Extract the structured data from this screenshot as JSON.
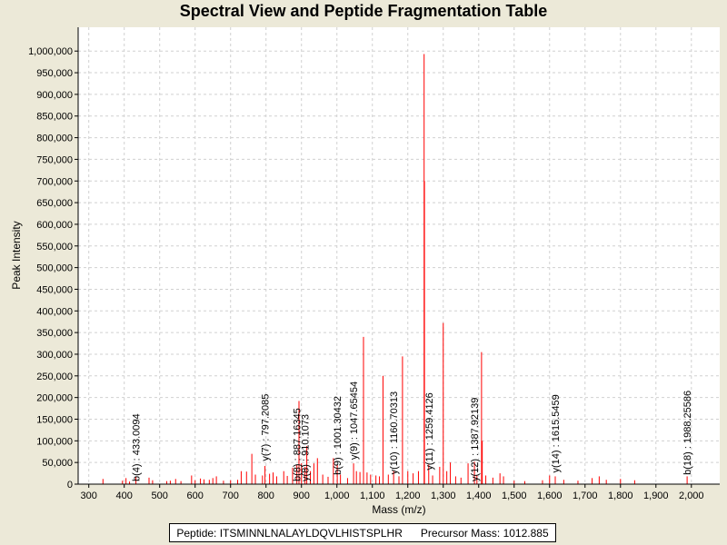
{
  "chart_data": {
    "type": "bar",
    "title": "Spectral View and Peptide Fragmentation Table",
    "xlabel": "Mass (m/z)",
    "ylabel": "Peak Intensity",
    "xlim": [
      270,
      2080
    ],
    "ylim": [
      0,
      1055000
    ],
    "x_ticks": [
      "300",
      "400",
      "500",
      "600",
      "700",
      "800",
      "900",
      "1,000",
      "1,100",
      "1,200",
      "1,300",
      "1,400",
      "1,500",
      "1,600",
      "1,700",
      "1,800",
      "1,900",
      "2,000"
    ],
    "y_ticks": [
      "0",
      "50,000",
      "100,000",
      "150,000",
      "200,000",
      "250,000",
      "300,000",
      "350,000",
      "400,000",
      "450,000",
      "500,000",
      "550,000",
      "600,000",
      "650,000",
      "700,000",
      "750,000",
      "800,000",
      "850,000",
      "900,000",
      "950,000",
      "1,000,000"
    ],
    "grid": true,
    "peak_color": "#ff0000",
    "peaks": [
      {
        "mz": 340,
        "i": 12000
      },
      {
        "mz": 395,
        "i": 8000
      },
      {
        "mz": 405,
        "i": 14000
      },
      {
        "mz": 415,
        "i": 6000
      },
      {
        "mz": 433,
        "i": 16000
      },
      {
        "mz": 470,
        "i": 15000
      },
      {
        "mz": 480,
        "i": 9000
      },
      {
        "mz": 520,
        "i": 7000
      },
      {
        "mz": 530,
        "i": 8000
      },
      {
        "mz": 545,
        "i": 12000
      },
      {
        "mz": 560,
        "i": 7000
      },
      {
        "mz": 590,
        "i": 20000
      },
      {
        "mz": 600,
        "i": 9000
      },
      {
        "mz": 615,
        "i": 13000
      },
      {
        "mz": 625,
        "i": 11000
      },
      {
        "mz": 640,
        "i": 10000
      },
      {
        "mz": 650,
        "i": 14000
      },
      {
        "mz": 660,
        "i": 18000
      },
      {
        "mz": 680,
        "i": 8000
      },
      {
        "mz": 700,
        "i": 9000
      },
      {
        "mz": 720,
        "i": 10000
      },
      {
        "mz": 730,
        "i": 30000
      },
      {
        "mz": 745,
        "i": 29000
      },
      {
        "mz": 760,
        "i": 70000
      },
      {
        "mz": 770,
        "i": 22000
      },
      {
        "mz": 790,
        "i": 20000
      },
      {
        "mz": 797,
        "i": 42000
      },
      {
        "mz": 810,
        "i": 24000
      },
      {
        "mz": 820,
        "i": 27000
      },
      {
        "mz": 830,
        "i": 18000
      },
      {
        "mz": 850,
        "i": 30000
      },
      {
        "mz": 860,
        "i": 19000
      },
      {
        "mz": 875,
        "i": 38000
      },
      {
        "mz": 887,
        "i": 45000
      },
      {
        "mz": 893,
        "i": 192000
      },
      {
        "mz": 900,
        "i": 48000
      },
      {
        "mz": 910,
        "i": 40000
      },
      {
        "mz": 915,
        "i": 88000
      },
      {
        "mz": 925,
        "i": 30000
      },
      {
        "mz": 935,
        "i": 48000
      },
      {
        "mz": 945,
        "i": 60000
      },
      {
        "mz": 960,
        "i": 22000
      },
      {
        "mz": 975,
        "i": 17000
      },
      {
        "mz": 990,
        "i": 60000
      },
      {
        "mz": 1001,
        "i": 45000
      },
      {
        "mz": 1010,
        "i": 22000
      },
      {
        "mz": 1030,
        "i": 14000
      },
      {
        "mz": 1047,
        "i": 48000
      },
      {
        "mz": 1055,
        "i": 30000
      },
      {
        "mz": 1065,
        "i": 28000
      },
      {
        "mz": 1075,
        "i": 340000
      },
      {
        "mz": 1085,
        "i": 27000
      },
      {
        "mz": 1095,
        "i": 22000
      },
      {
        "mz": 1110,
        "i": 20000
      },
      {
        "mz": 1120,
        "i": 18000
      },
      {
        "mz": 1130,
        "i": 250000
      },
      {
        "mz": 1145,
        "i": 22000
      },
      {
        "mz": 1160,
        "i": 30000
      },
      {
        "mz": 1175,
        "i": 18000
      },
      {
        "mz": 1185,
        "i": 295000
      },
      {
        "mz": 1200,
        "i": 30000
      },
      {
        "mz": 1215,
        "i": 25000
      },
      {
        "mz": 1230,
        "i": 30000
      },
      {
        "mz": 1246,
        "i": 993000
      },
      {
        "mz": 1247,
        "i": 700000
      },
      {
        "mz": 1259,
        "i": 45000
      },
      {
        "mz": 1270,
        "i": 20000
      },
      {
        "mz": 1290,
        "i": 40000
      },
      {
        "mz": 1300,
        "i": 372000
      },
      {
        "mz": 1310,
        "i": 30000
      },
      {
        "mz": 1320,
        "i": 50000
      },
      {
        "mz": 1335,
        "i": 18000
      },
      {
        "mz": 1350,
        "i": 15000
      },
      {
        "mz": 1370,
        "i": 48000
      },
      {
        "mz": 1388,
        "i": 52000
      },
      {
        "mz": 1395,
        "i": 20000
      },
      {
        "mz": 1408,
        "i": 305000
      },
      {
        "mz": 1410,
        "i": 100000
      },
      {
        "mz": 1420,
        "i": 20000
      },
      {
        "mz": 1440,
        "i": 15000
      },
      {
        "mz": 1460,
        "i": 25000
      },
      {
        "mz": 1470,
        "i": 18000
      },
      {
        "mz": 1500,
        "i": 8000
      },
      {
        "mz": 1530,
        "i": 7000
      },
      {
        "mz": 1580,
        "i": 9000
      },
      {
        "mz": 1600,
        "i": 20000
      },
      {
        "mz": 1616,
        "i": 18000
      },
      {
        "mz": 1640,
        "i": 10000
      },
      {
        "mz": 1680,
        "i": 8000
      },
      {
        "mz": 1720,
        "i": 14000
      },
      {
        "mz": 1740,
        "i": 18000
      },
      {
        "mz": 1760,
        "i": 10000
      },
      {
        "mz": 1800,
        "i": 12000
      },
      {
        "mz": 1840,
        "i": 9000
      },
      {
        "mz": 1988,
        "i": 18000
      }
    ],
    "annotations": [
      {
        "label": "b(4) : 433.0094",
        "mz": 433,
        "y_base": 0
      },
      {
        "label": "y(7) : 797.2085",
        "mz": 797,
        "y_base": 47000
      },
      {
        "label": "b(8) : 887.16345",
        "mz": 887,
        "y_base": 0
      },
      {
        "label": "y(8) : 910.1073",
        "mz": 910,
        "y_base": 0
      },
      {
        "label": "b(9) : 1001.30432",
        "mz": 1001,
        "y_base": 15000
      },
      {
        "label": "y(9) : 1047.65454",
        "mz": 1047,
        "y_base": 50000
      },
      {
        "label": "y(10) : 1160.70313",
        "mz": 1160,
        "y_base": 16000
      },
      {
        "label": "y(11) : 1259.4126",
        "mz": 1259,
        "y_base": 26000
      },
      {
        "label": "y(12) : 1387.92139",
        "mz": 1388,
        "y_base": 0
      },
      {
        "label": "y(14) : 1615.5459",
        "mz": 1616,
        "y_base": 20000
      },
      {
        "label": "b(18) : 1988.25586",
        "mz": 1988,
        "y_base": 15000
      }
    ]
  },
  "info": {
    "peptide": "Peptide: ITSMINNLNALAYLDQVLHISTSPLHR",
    "precursor": "Precursor Mass: 1012.885"
  }
}
